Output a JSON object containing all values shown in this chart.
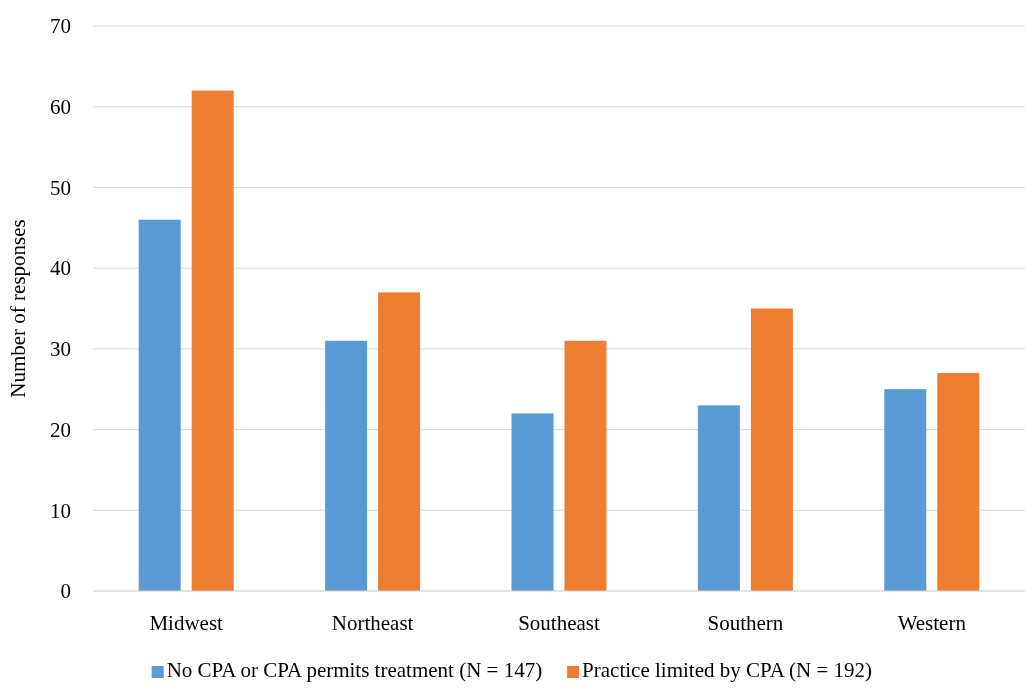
{
  "chart_data": {
    "type": "bar",
    "ylabel": "Number of responses",
    "categories": [
      "Midwest",
      "Northeast",
      "Southeast",
      "Southern",
      "Western"
    ],
    "series": [
      {
        "name": "No CPA or CPA permits treatment (N = 147)",
        "color": "#5b9bd5",
        "values": [
          46,
          31,
          22,
          23,
          25
        ]
      },
      {
        "name": "Practice limited by CPA (N = 192)",
        "color": "#ed7d31",
        "values": [
          62,
          37,
          31,
          35,
          27
        ]
      }
    ],
    "ylim": [
      0,
      70
    ],
    "yticks": [
      0,
      10,
      20,
      30,
      40,
      50,
      60,
      70
    ],
    "grid": "y",
    "legend": "bottom"
  }
}
